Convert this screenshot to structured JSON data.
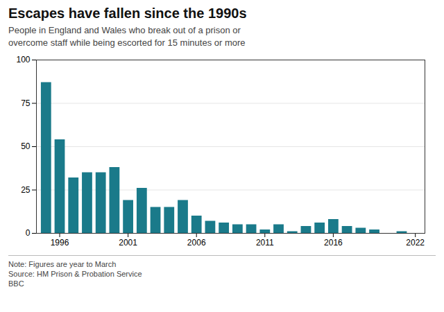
{
  "chart_data": {
    "type": "bar",
    "title": "Escapes have fallen since the 1990s",
    "subtitle": "People in England and Wales who break out of a prison or\novercome staff while being escorted for 15 minutes or more",
    "annotations": [
      "Note: Figures are year to March",
      "Source: HM Prison & Probation Service",
      "BBC"
    ],
    "x": [
      1995,
      1996,
      1997,
      1998,
      1999,
      2000,
      2001,
      2002,
      2003,
      2004,
      2005,
      2006,
      2007,
      2008,
      2009,
      2010,
      2011,
      2012,
      2013,
      2014,
      2015,
      2016,
      2017,
      2018,
      2019,
      2020,
      2021,
      2022
    ],
    "values": [
      87,
      54,
      32,
      35,
      35,
      38,
      19,
      26,
      15,
      15,
      19,
      10,
      7,
      6,
      5,
      5,
      2,
      5,
      1,
      4,
      6,
      8,
      4,
      3,
      2,
      0,
      1,
      0
    ],
    "color": "#1a7a8a",
    "xlim": [
      1994.3,
      2022.7
    ],
    "xticks": [
      1996,
      2001,
      2006,
      2011,
      2016,
      2022
    ],
    "ylim": [
      0,
      100
    ],
    "yticks": [
      0,
      25,
      50,
      75,
      100
    ],
    "grid": true
  }
}
